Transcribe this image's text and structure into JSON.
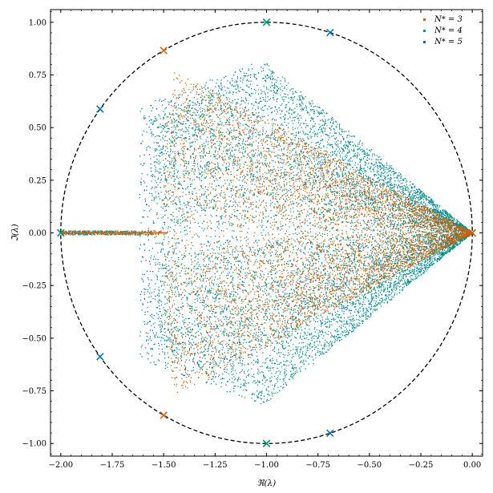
{
  "chart_data": {
    "type": "scatter",
    "title": "",
    "xlabel": "ℜ(λ)",
    "ylabel": "ℑ(λ)",
    "xlim": [
      -2.05,
      0.05
    ],
    "ylim": [
      -1.06,
      1.06
    ],
    "xticks": [
      -2.0,
      -1.75,
      -1.5,
      -1.25,
      -1.0,
      -0.75,
      -0.5,
      -0.25,
      0.0
    ],
    "xtick_labels": [
      "−2.00",
      "−1.75",
      "−1.50",
      "−1.25",
      "−1.00",
      "−0.75",
      "−0.50",
      "−0.25",
      "0.00"
    ],
    "yticks": [
      -1.0,
      -0.75,
      -0.5,
      -0.25,
      0.0,
      0.25,
      0.5,
      0.75,
      1.0
    ],
    "ytick_labels": [
      "−1.00",
      "−0.75",
      "−0.50",
      "−0.25",
      "0.00",
      "0.25",
      "0.50",
      "0.75",
      "1.00"
    ],
    "grid": false,
    "legend_position": "top-right",
    "reference_circle": {
      "center": [
        -1.0,
        0.0
      ],
      "radius": 1.0,
      "style": "dashed",
      "color": "#000000"
    },
    "series": [
      {
        "name": "N* = 5",
        "color": "#0072b2",
        "cloud": {
          "x_left": -1.62,
          "x_peak": -1.02,
          "amp_left": 0.6,
          "amp_peak": 0.82,
          "x_right": 0.0
        },
        "markers": [
          [
            0.0,
            0.0
          ],
          [
            -0.691,
            0.951
          ],
          [
            -1.0,
            1.0
          ],
          [
            -1.809,
            0.588
          ],
          [
            -2.0,
            0.0
          ],
          [
            -1.809,
            -0.588
          ],
          [
            -1.0,
            -1.0
          ],
          [
            -0.691,
            -0.951
          ]
        ]
      },
      {
        "name": "N* = 4",
        "color": "#009e73",
        "cloud": {
          "x_left": -1.55,
          "x_peak": -1.0,
          "amp_left": 0.55,
          "amp_peak": 0.8,
          "x_right": 0.0
        },
        "markers": [
          [
            0.0,
            0.0
          ],
          [
            -1.0,
            1.0
          ],
          [
            -2.0,
            0.0
          ],
          [
            -1.0,
            -1.0
          ]
        ]
      },
      {
        "name": "N* = 3",
        "color": "#d55e00",
        "cloud": {
          "x_left": -1.5,
          "x_peak": -1.45,
          "amp_left": 0.45,
          "amp_peak": 0.78,
          "x_right": 0.0
        },
        "markers": [
          [
            0.0,
            0.0
          ],
          [
            -1.5,
            0.866
          ],
          [
            -1.5,
            -0.866
          ]
        ]
      }
    ],
    "legend_entries": [
      {
        "label": "N* = 3",
        "color": "#d55e00"
      },
      {
        "label": "N* = 4",
        "color": "#009e73"
      },
      {
        "label": "N* = 5",
        "color": "#0072b2"
      }
    ]
  }
}
